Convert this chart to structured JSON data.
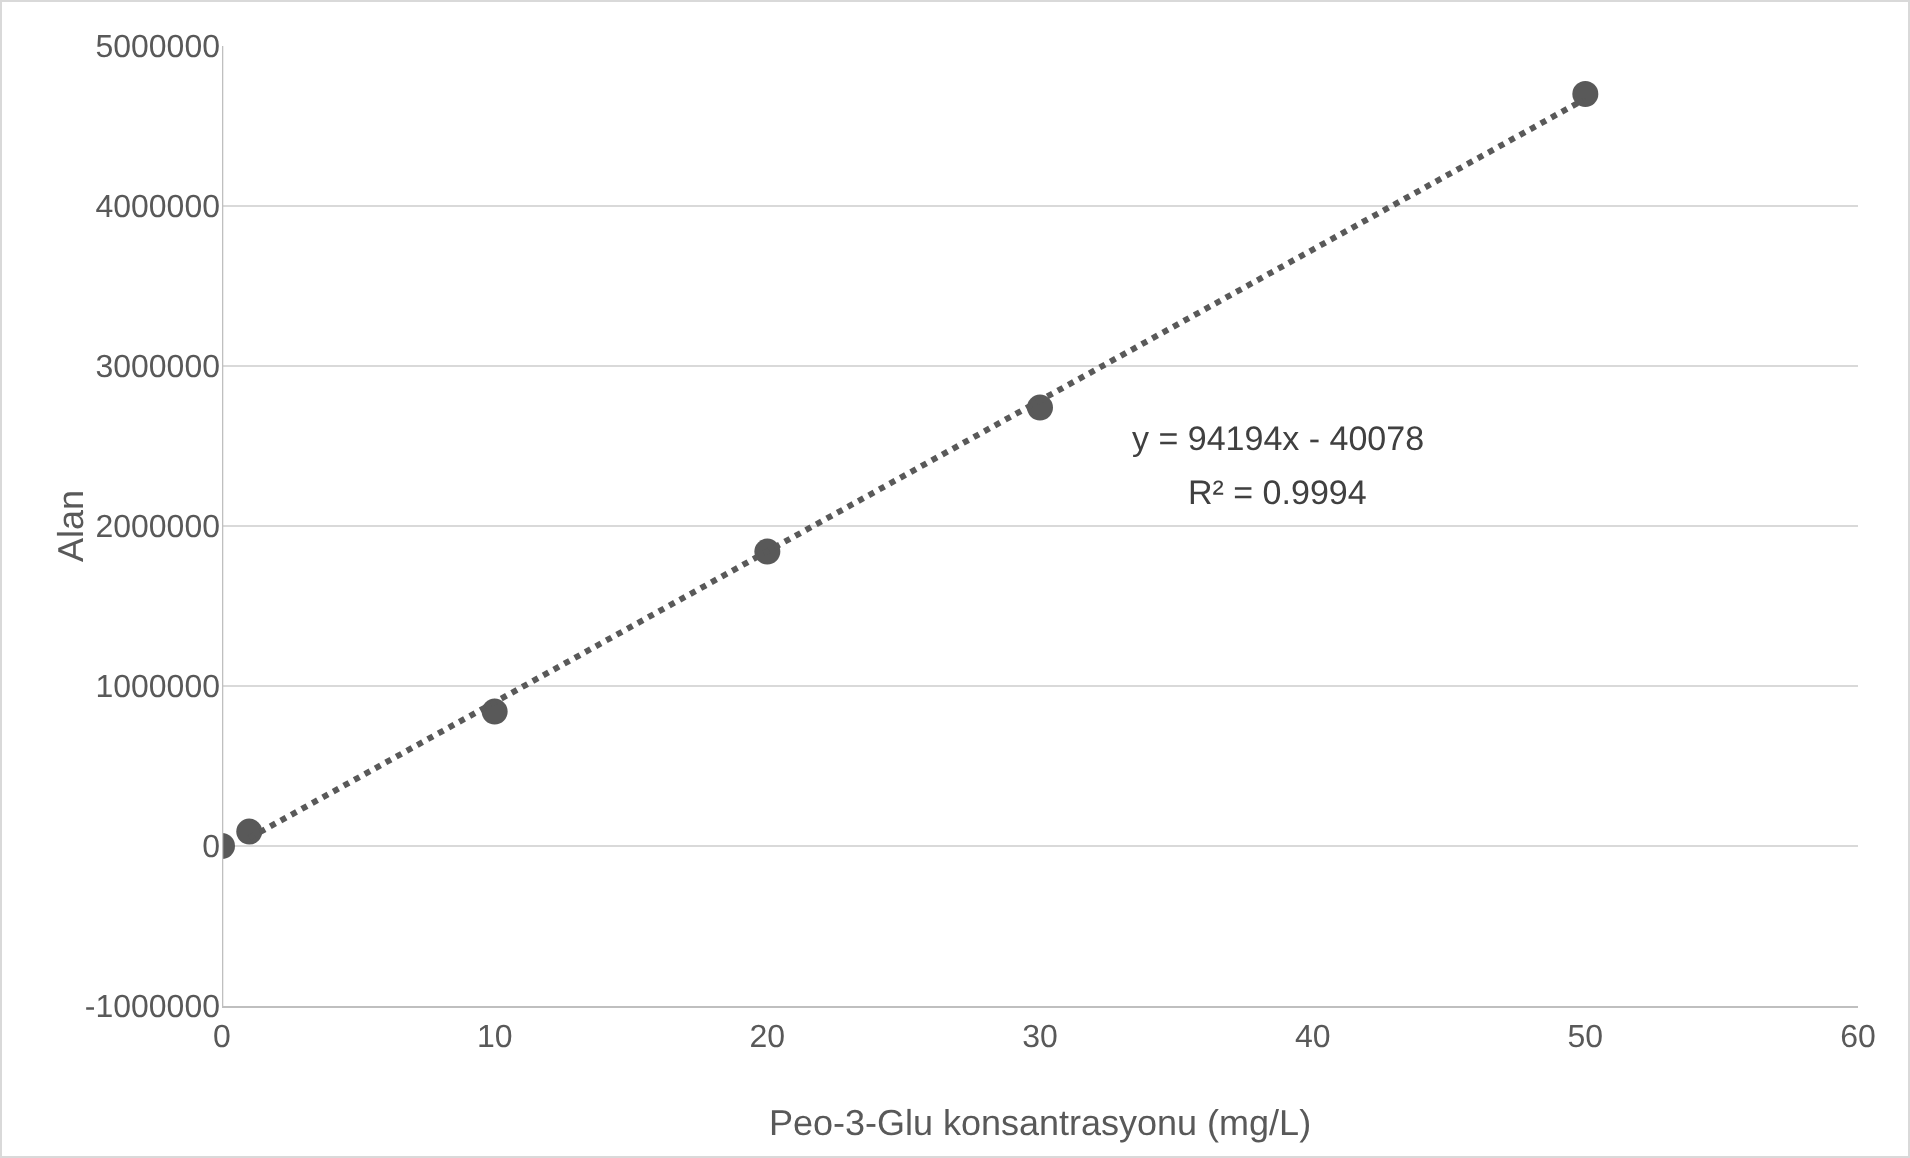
{
  "chart_data": {
    "type": "scatter",
    "xlabel": "Peo-3-Glu konsantrasyonu (mg/L)",
    "ylabel": "Alan",
    "x": [
      0,
      1,
      10,
      20,
      30,
      50
    ],
    "series": [
      {
        "color": "#595959",
        "marker": "circle",
        "values": [
          0,
          90000,
          840000,
          1840000,
          2740000,
          4700000
        ]
      },
      {
        "type": "line",
        "color": "#595959",
        "marker": "none",
        "line_style": "dotted",
        "x": [
          1,
          50
        ],
        "values": [
          50000,
          4670000
        ]
      }
    ],
    "annotations": [
      "y = 94194x - 40078",
      "R² = 0.9994"
    ],
    "xlim": [
      0,
      60
    ],
    "xticks": [
      0,
      10,
      20,
      30,
      40,
      50,
      60
    ],
    "ylim": [
      -1000000,
      5000000
    ],
    "yticks": [
      -1000000,
      0,
      1000000,
      2000000,
      3000000,
      4000000,
      5000000
    ],
    "grid": "y"
  }
}
